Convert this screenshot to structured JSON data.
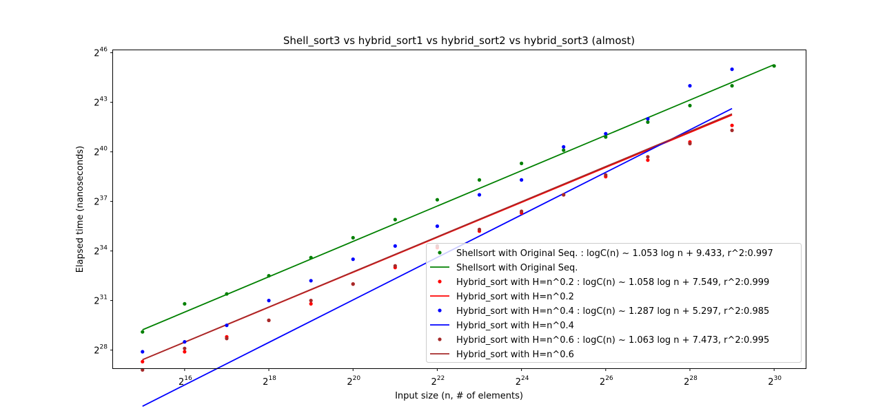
{
  "chart_data": {
    "type": "scatter",
    "title": "Shell_sort3 vs  hybrid_sort1 vs hybrid_sort2 vs hybrid_sort3  (almost)",
    "xlabel": "Input size (n, # of elements)",
    "ylabel": "Elapsed time (nanoseconds)",
    "x_scale": "log2",
    "y_scale": "log2",
    "xlim": [
      14.3,
      30.75
    ],
    "ylim": [
      26.9,
      46.15
    ],
    "x_ticks": [
      {
        "base": "2",
        "exp": "16",
        "value": 16
      },
      {
        "base": "2",
        "exp": "18",
        "value": 18
      },
      {
        "base": "2",
        "exp": "20",
        "value": 20
      },
      {
        "base": "2",
        "exp": "22",
        "value": 22
      },
      {
        "base": "2",
        "exp": "24",
        "value": 24
      },
      {
        "base": "2",
        "exp": "26",
        "value": 26
      },
      {
        "base": "2",
        "exp": "28",
        "value": 28
      },
      {
        "base": "2",
        "exp": "30",
        "value": 30
      }
    ],
    "y_ticks": [
      {
        "base": "2",
        "exp": "28",
        "value": 28
      },
      {
        "base": "2",
        "exp": "31",
        "value": 31
      },
      {
        "base": "2",
        "exp": "34",
        "value": 34
      },
      {
        "base": "2",
        "exp": "37",
        "value": 37
      },
      {
        "base": "2",
        "exp": "40",
        "value": 40
      },
      {
        "base": "2",
        "exp": "43",
        "value": 43
      },
      {
        "base": "2",
        "exp": "46",
        "value": 46
      }
    ],
    "grid": false,
    "legend_position": "lower-right",
    "series": [
      {
        "name": "Shellsort with Original Seq. : logC(n) ~ 1.053 log n  + 9.433, r^2:0.997",
        "kind": "points",
        "color": "#008000",
        "points": [
          [
            15,
            29.1
          ],
          [
            16,
            30.8
          ],
          [
            17,
            31.4
          ],
          [
            18,
            32.5
          ],
          [
            19,
            33.6
          ],
          [
            20,
            34.8
          ],
          [
            21,
            35.9
          ],
          [
            22,
            37.1
          ],
          [
            23,
            38.3
          ],
          [
            24,
            39.3
          ],
          [
            25,
            40.1
          ],
          [
            26,
            40.9
          ],
          [
            27,
            41.8
          ],
          [
            28,
            42.8
          ],
          [
            29,
            44.0
          ],
          [
            30,
            45.2
          ]
        ]
      },
      {
        "name": "Shellsort with Original Seq.",
        "kind": "line",
        "color": "#008000",
        "points": [
          [
            15,
            29.228
          ],
          [
            30,
            45.278
          ]
        ]
      },
      {
        "name": "Hybrid_sort with H=n^0.2 : logC(n) ~ 1.058 log n  + 7.549, r^2:0.999",
        "kind": "points",
        "color": "#ff0000",
        "points": [
          [
            15,
            27.3
          ],
          [
            16,
            27.9
          ],
          [
            17,
            28.8
          ],
          [
            18,
            29.8
          ],
          [
            19,
            30.8
          ],
          [
            20,
            32.0
          ],
          [
            21,
            33.0
          ],
          [
            22,
            34.2
          ],
          [
            23,
            35.2
          ],
          [
            24,
            36.3
          ],
          [
            25,
            37.4
          ],
          [
            26,
            38.5
          ],
          [
            27,
            39.5
          ],
          [
            28,
            40.6
          ],
          [
            29,
            41.6
          ]
        ]
      },
      {
        "name": "Hybrid_sort with H=n^0.2",
        "kind": "line",
        "color": "#ff0000",
        "points": [
          [
            15,
            27.419
          ],
          [
            29,
            42.231
          ]
        ]
      },
      {
        "name": "Hybrid_sort with H=n^0.4 : logC(n) ~ 1.287 log n  + 5.297, r^2:0.985",
        "kind": "points",
        "color": "#0000ff",
        "points": [
          [
            15,
            27.9
          ],
          [
            16,
            28.5
          ],
          [
            17,
            29.5
          ],
          [
            18,
            31.0
          ],
          [
            19,
            32.2
          ],
          [
            20,
            33.5
          ],
          [
            21,
            34.3
          ],
          [
            22,
            35.5
          ],
          [
            23,
            37.4
          ],
          [
            24,
            38.3
          ],
          [
            25,
            40.3
          ],
          [
            26,
            41.1
          ],
          [
            27,
            42.0
          ],
          [
            28,
            44.0
          ],
          [
            29,
            45.0
          ]
        ]
      },
      {
        "name": "Hybrid_sort with H=n^0.4",
        "kind": "line",
        "color": "#0000ff",
        "points": [
          [
            15,
            24.602
          ],
          [
            29,
            42.62
          ]
        ]
      },
      {
        "name": "Hybrid_sort with H=n^0.6 : logC(n) ~ 1.063 log n  + 7.473, r^2:0.995",
        "kind": "points",
        "color": "#a52a2a",
        "points": [
          [
            15,
            26.8
          ],
          [
            16,
            28.1
          ],
          [
            17,
            28.7
          ],
          [
            18,
            29.8
          ],
          [
            19,
            31.0
          ],
          [
            20,
            32.0
          ],
          [
            21,
            33.1
          ],
          [
            22,
            34.3
          ],
          [
            23,
            35.3
          ],
          [
            24,
            36.4
          ],
          [
            25,
            37.4
          ],
          [
            26,
            38.6
          ],
          [
            27,
            39.7
          ],
          [
            28,
            40.5
          ],
          [
            29,
            41.3
          ]
        ]
      },
      {
        "name": "Hybrid_sort with H=n^0.6",
        "kind": "line",
        "color": "#a52a2a",
        "points": [
          [
            15,
            27.418
          ],
          [
            29,
            42.3
          ]
        ]
      }
    ]
  }
}
